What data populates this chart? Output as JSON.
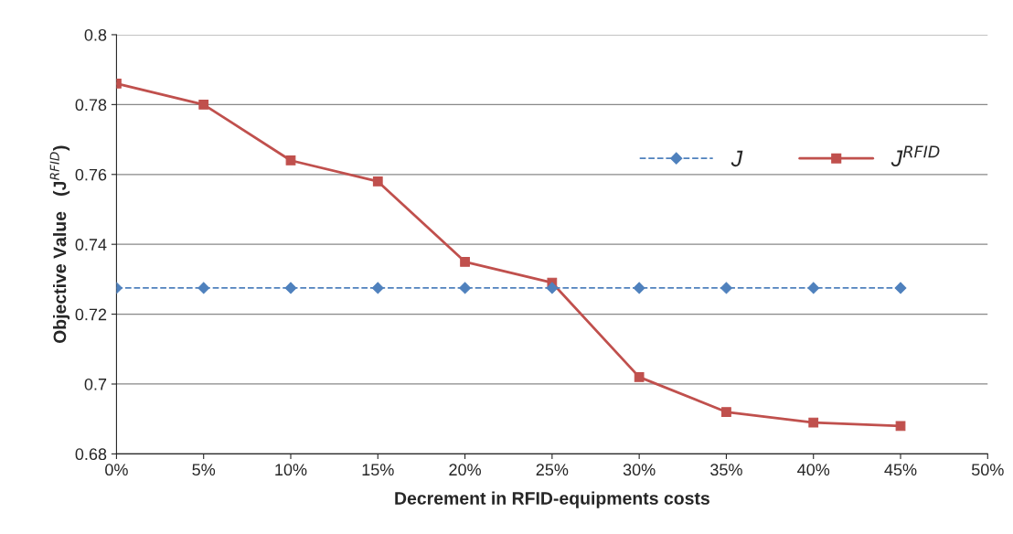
{
  "chart_data": {
    "type": "line",
    "xlabel": "Decrement in RFID-equipments costs",
    "ylabel": "Objective Value   (J$^{RFID}$)",
    "x": [
      0,
      5,
      10,
      15,
      20,
      25,
      30,
      35,
      40,
      45
    ],
    "series": [
      {
        "name": "J",
        "color": "#4f81bd",
        "marker": "diamond",
        "line_style": "dashed",
        "values": [
          0.7275,
          0.7275,
          0.7275,
          0.7275,
          0.7275,
          0.7275,
          0.7275,
          0.7275,
          0.7275,
          0.7275
        ]
      },
      {
        "name": "J$^{RFID}$",
        "color": "#c0504d",
        "marker": "square",
        "line_style": "solid",
        "values": [
          0.786,
          0.78,
          0.764,
          0.758,
          0.735,
          0.729,
          0.702,
          0.692,
          0.689,
          0.688
        ]
      }
    ],
    "xlim": [
      0,
      50
    ],
    "xticks": [
      {
        "value": 0,
        "label": "0%"
      },
      {
        "value": 5,
        "label": "5%"
      },
      {
        "value": 10,
        "label": "10%"
      },
      {
        "value": 15,
        "label": "15%"
      },
      {
        "value": 20,
        "label": "20%"
      },
      {
        "value": 25,
        "label": "25%"
      },
      {
        "value": 30,
        "label": "30%"
      },
      {
        "value": 35,
        "label": "35%"
      },
      {
        "value": 40,
        "label": "40%"
      },
      {
        "value": 45,
        "label": "45%"
      },
      {
        "value": 50,
        "label": "50%"
      }
    ],
    "ylim": [
      0.68,
      0.8
    ],
    "yticks": [
      0.68,
      0.7,
      0.72,
      0.74,
      0.76,
      0.78,
      0.8
    ],
    "grid": "y",
    "legend": "right"
  }
}
